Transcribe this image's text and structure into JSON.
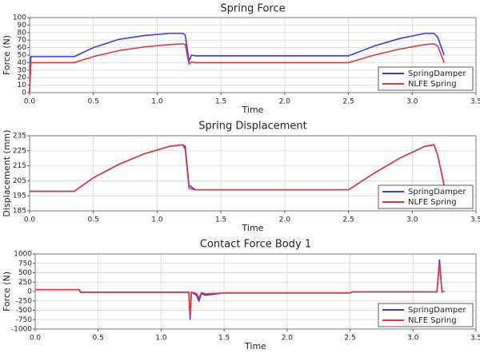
{
  "chart_data": [
    {
      "type": "line",
      "title": "Spring Force",
      "x_label": "Time",
      "y_label": "Force (N)",
      "x": [
        0,
        0.01,
        0.35,
        0.5,
        0.7,
        0.9,
        1.1,
        1.2,
        1.22,
        1.25,
        1.27,
        1.3,
        1.5,
        2.0,
        2.5,
        2.7,
        2.9,
        3.1,
        3.17,
        3.2,
        3.25
      ],
      "series": [
        {
          "name": "SpringDamper",
          "color": "#3b3bdc",
          "values": [
            0,
            48,
            48,
            60,
            71,
            76,
            79,
            79,
            77,
            42,
            50,
            49,
            49,
            49,
            49,
            62,
            72,
            79,
            79,
            74,
            50
          ]
        },
        {
          "name": "NLFE Spring",
          "color": "#e0383f",
          "values": [
            0,
            40,
            40,
            48,
            56,
            61,
            64,
            65,
            64,
            38,
            41,
            40,
            40,
            40,
            40,
            50,
            58,
            64,
            65,
            62,
            40
          ]
        }
      ],
      "xlim": [
        0,
        3.5
      ],
      "xticks": [
        {
          "value": 0,
          "label": "0.0"
        },
        0.5,
        {
          "value": 1,
          "label": "1.0"
        },
        1.5,
        {
          "value": 2,
          "label": "2.0"
        },
        2.5,
        {
          "value": 3,
          "label": "3.0"
        },
        3.5
      ],
      "ylim": [
        0,
        100
      ],
      "yticks": [
        0,
        10,
        20,
        30,
        40,
        50,
        60,
        70,
        80,
        90,
        100
      ],
      "grid": true,
      "legend": "lower right"
    },
    {
      "type": "line",
      "title": "Spring Displacement",
      "x_label": "Time",
      "y_label": "Displacement (mm)",
      "x": [
        0,
        0.35,
        0.5,
        0.7,
        0.9,
        1.1,
        1.2,
        1.22,
        1.25,
        1.3,
        1.5,
        2.0,
        2.5,
        2.7,
        2.9,
        3.1,
        3.17,
        3.2,
        3.25
      ],
      "series": [
        {
          "name": "SpringDamper",
          "color": "#3b3bdc",
          "values": [
            198,
            198,
            207,
            216,
            223,
            228,
            229,
            228,
            202,
            199,
            199,
            199,
            199,
            210,
            220,
            228,
            229,
            222,
            202
          ]
        },
        {
          "name": "NLFE Spring",
          "color": "#e0383f",
          "values": [
            198,
            198,
            207,
            216,
            223,
            228,
            229,
            226,
            200,
            199,
            199,
            199,
            199,
            210,
            220,
            228,
            229,
            222,
            202
          ]
        }
      ],
      "xlim": [
        0,
        3.5
      ],
      "xticks": [
        {
          "value": 0,
          "label": "0.0"
        },
        0.5,
        {
          "value": 1,
          "label": "1.0"
        },
        1.5,
        {
          "value": 2,
          "label": "2.0"
        },
        2.5,
        {
          "value": 3,
          "label": "3.0"
        },
        3.5
      ],
      "ylim": [
        185,
        235
      ],
      "yticks": [
        185,
        195,
        205,
        215,
        225,
        235
      ],
      "grid": true,
      "legend": "lower right"
    },
    {
      "type": "line",
      "title": "Contact Force Body 1",
      "x_label": "Time",
      "y_label": "Force (N)",
      "x": [
        0,
        0.35,
        0.36,
        1.0,
        1.22,
        1.23,
        1.24,
        1.28,
        1.3,
        1.32,
        1.35,
        1.5,
        2.0,
        2.5,
        2.52,
        3.0,
        3.19,
        3.21,
        3.23,
        3.25
      ],
      "series": [
        {
          "name": "SpringDamper",
          "color": "#3b3bdc",
          "values": [
            50,
            50,
            -20,
            -20,
            -20,
            -750,
            -20,
            -100,
            -250,
            -50,
            -100,
            -40,
            -40,
            -40,
            -10,
            -10,
            -10,
            850,
            -10,
            0
          ]
        },
        {
          "name": "NLFE Spring",
          "color": "#e0383f",
          "values": [
            50,
            50,
            -20,
            -20,
            -20,
            -700,
            -20,
            -50,
            -180,
            -30,
            -60,
            -40,
            -40,
            -40,
            -10,
            -10,
            -10,
            750,
            -10,
            0
          ]
        }
      ],
      "xlim": [
        0,
        3.5
      ],
      "xticks": [
        {
          "value": 0,
          "label": "0.0"
        },
        0.5,
        {
          "value": 1,
          "label": "1.0"
        },
        1.5,
        {
          "value": 2,
          "label": "2.0"
        },
        2.5,
        {
          "value": 3,
          "label": "3.0"
        },
        3.5
      ],
      "ylim": [
        -1000,
        1000
      ],
      "yticks": [
        -1000,
        -750,
        -500,
        -250,
        0,
        250,
        500,
        750,
        1000
      ],
      "grid": true,
      "legend": "lower right"
    }
  ]
}
